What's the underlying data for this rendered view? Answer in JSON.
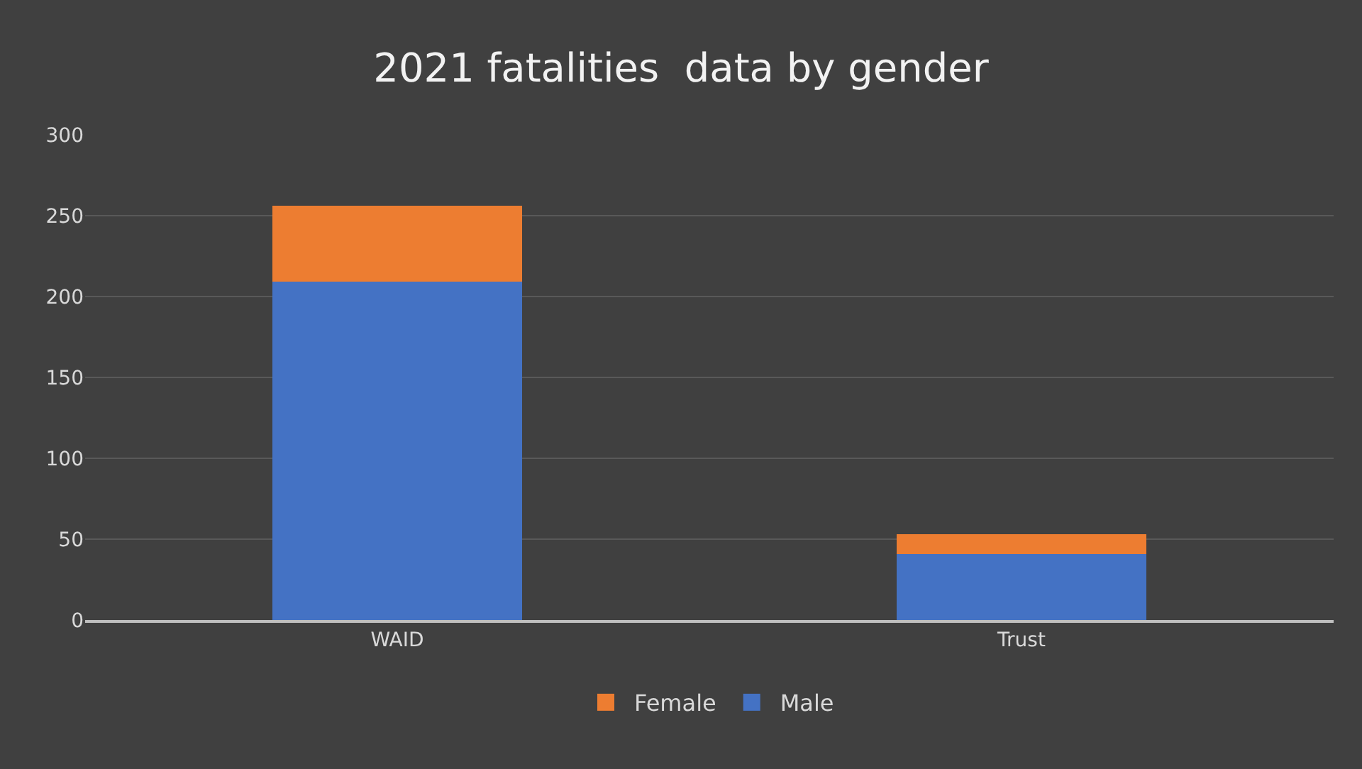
{
  "chart_data": {
    "type": "bar",
    "title": "2021 fatalities  data by gender",
    "categories": [
      "WAID",
      "Trust"
    ],
    "series": [
      {
        "name": "Male",
        "color": "#4472c4",
        "values": [
          209,
          41
        ]
      },
      {
        "name": "Female",
        "color": "#ed7d31",
        "values": [
          47,
          12
        ]
      }
    ],
    "stacked": true,
    "ylim": [
      0,
      300
    ],
    "yticks": [
      0,
      50,
      100,
      150,
      200,
      250,
      300
    ],
    "grid": "y",
    "legend": "bottom"
  }
}
